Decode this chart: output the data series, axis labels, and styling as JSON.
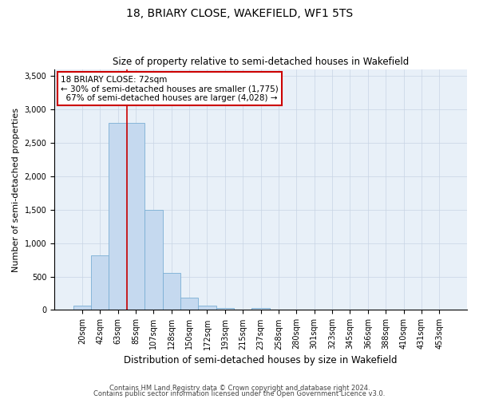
{
  "title_line1": "18, BRIARY CLOSE, WAKEFIELD, WF1 5TS",
  "title_line2": "Size of property relative to semi-detached houses in Wakefield",
  "xlabel": "Distribution of semi-detached houses by size in Wakefield",
  "ylabel": "Number of semi-detached properties",
  "footer_line1": "Contains HM Land Registry data © Crown copyright and database right 2024.",
  "footer_line2": "Contains public sector information licensed under the Open Government Licence v3.0.",
  "bin_labels": [
    "20sqm",
    "42sqm",
    "63sqm",
    "85sqm",
    "107sqm",
    "128sqm",
    "150sqm",
    "172sqm",
    "193sqm",
    "215sqm",
    "237sqm",
    "258sqm",
    "280sqm",
    "301sqm",
    "323sqm",
    "345sqm",
    "366sqm",
    "388sqm",
    "410sqm",
    "431sqm",
    "453sqm"
  ],
  "bar_values": [
    60,
    820,
    2800,
    2800,
    1500,
    560,
    190,
    60,
    30,
    0,
    25,
    0,
    0,
    0,
    0,
    0,
    0,
    0,
    0,
    0,
    0
  ],
  "bar_color": "#c5d9ef",
  "bar_edge_color": "#7bafd4",
  "property_label": "18 BRIARY CLOSE: 72sqm",
  "pct_smaller": 30,
  "count_smaller": 1775,
  "pct_larger": 67,
  "count_larger": 4028,
  "vline_x": 2.5,
  "ylim": [
    0,
    3600
  ],
  "yticks": [
    0,
    500,
    1000,
    1500,
    2000,
    2500,
    3000,
    3500
  ],
  "bg_color": "#e8f0f8",
  "annotation_box_color": "#ffffff",
  "annotation_border_color": "#cc0000",
  "vline_color": "#cc0000",
  "grid_color": "#c8d4e4",
  "title1_fontsize": 10,
  "title2_fontsize": 8.5,
  "ylabel_fontsize": 8,
  "xlabel_fontsize": 8.5,
  "tick_fontsize": 7,
  "ann_fontsize": 7.5,
  "footer_fontsize": 6
}
